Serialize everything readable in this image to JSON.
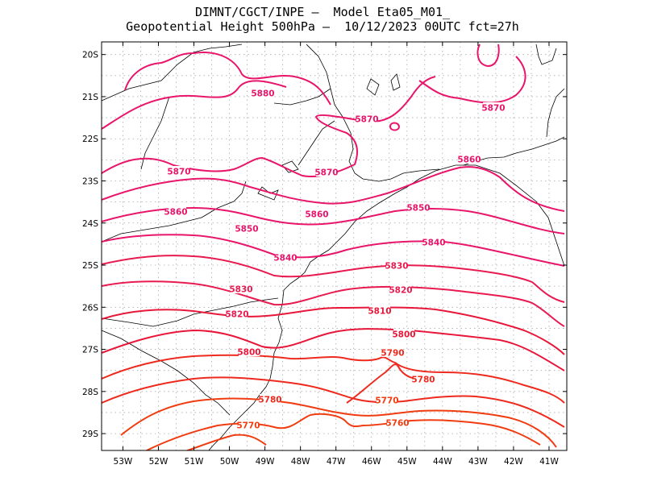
{
  "title": {
    "line1": "DIMNT/CGCT/INPE –  Model Eta05_M01_",
    "line2": "Geopotential Height 500hPa –  10/12/2023 00UTC fct=27h"
  },
  "map": {
    "lon_range": [
      -53.6,
      -40.5
    ],
    "lat_range": [
      -29.4,
      -19.7
    ],
    "lon_ticks": [
      "53W",
      "52W",
      "51W",
      "50W",
      "49W",
      "48W",
      "47W",
      "46W",
      "45W",
      "44W",
      "43W",
      "42W",
      "41W"
    ],
    "lat_ticks": [
      "20S",
      "21S",
      "22S",
      "23S",
      "24S",
      "25S",
      "26S",
      "27S",
      "28S",
      "29S"
    ],
    "grid": true,
    "grid_style": "dotted"
  },
  "contour_labels": [
    {
      "text": "5880",
      "color": "#e8156b"
    },
    {
      "text": "5870",
      "color": "#e8156b"
    },
    {
      "text": "5870",
      "color": "#e8156b"
    },
    {
      "text": "5870",
      "color": "#e8156b"
    },
    {
      "text": "5870",
      "color": "#e8156b"
    },
    {
      "text": "5860",
      "color": "#e8156b"
    },
    {
      "text": "5860",
      "color": "#e8156b"
    },
    {
      "text": "5860",
      "color": "#e8156b"
    },
    {
      "text": "5850",
      "color": "#e8156b"
    },
    {
      "text": "5850",
      "color": "#e8156b"
    },
    {
      "text": "5840",
      "color": "#e8156b"
    },
    {
      "text": "5840",
      "color": "#e8156b"
    },
    {
      "text": "5830",
      "color": "#e81a50"
    },
    {
      "text": "5830",
      "color": "#e81a50"
    },
    {
      "text": "5820",
      "color": "#e81a50"
    },
    {
      "text": "5820",
      "color": "#e81a50"
    },
    {
      "text": "5810",
      "color": "#e8173a"
    },
    {
      "text": "5800",
      "color": "#e8173a"
    },
    {
      "text": "5800",
      "color": "#e8173a"
    },
    {
      "text": "5790",
      "color": "#ee2a1e"
    },
    {
      "text": "5780",
      "color": "#ee2a1e"
    },
    {
      "text": "5780",
      "color": "#ee2a1e"
    },
    {
      "text": "5770",
      "color": "#f03c10"
    },
    {
      "text": "5770",
      "color": "#f03c10"
    },
    {
      "text": "5760",
      "color": "#f03c10"
    }
  ]
}
